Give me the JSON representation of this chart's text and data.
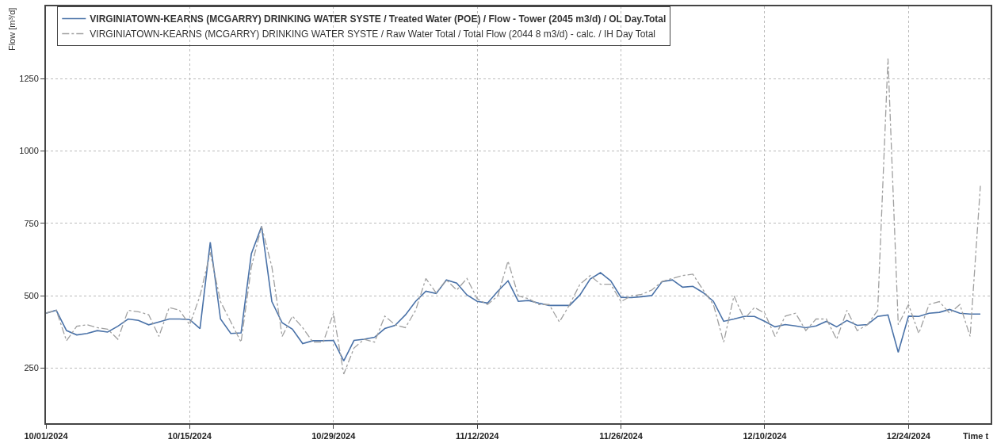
{
  "chart_data": {
    "type": "line",
    "ylabel": "Flow [m³/d]",
    "xlabel": "Time t",
    "x": [
      "2024-10-01",
      "2024-10-02",
      "2024-10-03",
      "2024-10-04",
      "2024-10-05",
      "2024-10-06",
      "2024-10-07",
      "2024-10-08",
      "2024-10-09",
      "2024-10-10",
      "2024-10-11",
      "2024-10-12",
      "2024-10-13",
      "2024-10-14",
      "2024-10-15",
      "2024-10-16",
      "2024-10-17",
      "2024-10-18",
      "2024-10-19",
      "2024-10-20",
      "2024-10-21",
      "2024-10-22",
      "2024-10-23",
      "2024-10-24",
      "2024-10-25",
      "2024-10-26",
      "2024-10-27",
      "2024-10-28",
      "2024-10-29",
      "2024-10-30",
      "2024-10-31",
      "2024-11-01",
      "2024-11-02",
      "2024-11-03",
      "2024-11-04",
      "2024-11-05",
      "2024-11-06",
      "2024-11-07",
      "2024-11-08",
      "2024-11-09",
      "2024-11-10",
      "2024-11-11",
      "2024-11-12",
      "2024-11-13",
      "2024-11-14",
      "2024-11-15",
      "2024-11-16",
      "2024-11-17",
      "2024-11-18",
      "2024-11-19",
      "2024-11-20",
      "2024-11-21",
      "2024-11-22",
      "2024-11-23",
      "2024-11-24",
      "2024-11-25",
      "2024-11-26",
      "2024-11-27",
      "2024-11-28",
      "2024-11-29",
      "2024-11-30",
      "2024-12-01",
      "2024-12-02",
      "2024-12-03",
      "2024-12-04",
      "2024-12-05",
      "2024-12-06",
      "2024-12-07",
      "2024-12-08",
      "2024-12-09",
      "2024-12-10",
      "2024-12-11",
      "2024-12-12",
      "2024-12-13",
      "2024-12-14",
      "2024-12-15",
      "2024-12-16",
      "2024-12-17",
      "2024-12-18",
      "2024-12-19",
      "2024-12-20",
      "2024-12-21",
      "2024-12-22",
      "2024-12-23",
      "2024-12-24",
      "2024-12-25",
      "2024-12-26",
      "2024-12-27",
      "2024-12-28",
      "2024-12-29",
      "2024-12-30",
      "2024-12-31"
    ],
    "series": [
      {
        "name": "VIRGINIATOWN-KEARNS (MCGARRY) DRINKING WATER SYSTE / Treated Water (POE) / Flow - Tower (2045 m3/d) / OL Day.Total",
        "color": "#4a72a8",
        "line_style": "solid",
        "values": [
          440,
          450,
          380,
          365,
          370,
          380,
          375,
          395,
          420,
          415,
          400,
          410,
          420,
          420,
          418,
          387,
          685,
          420,
          370,
          372,
          645,
          740,
          480,
          407,
          385,
          335,
          345,
          345,
          346,
          275,
          346,
          350,
          357,
          387,
          398,
          434,
          481,
          516,
          508,
          555,
          544,
          503,
          481,
          475,
          516,
          552,
          481,
          484,
          475,
          467,
          467,
          467,
          503,
          558,
          580,
          552,
          495,
          494,
          497,
          501,
          549,
          555,
          530,
          533,
          511,
          481,
          412,
          420,
          429,
          429,
          412,
          393,
          401,
          396,
          390,
          396,
          412,
          393,
          415,
          398,
          401,
          429,
          434,
          305,
          430,
          429,
          440,
          443,
          453,
          440,
          437,
          437
        ]
      },
      {
        "name": "VIRGINIATOWN-KEARNS (MCGARRY) DRINKING WATER SYSTE / Raw Water Total / Total Flow (2044 8 m3/d) - calc. / IH Day Total",
        "color": "#a0a0a0",
        "line_style": "dashed",
        "values": [
          440,
          450,
          345,
          395,
          400,
          390,
          385,
          350,
          450,
          445,
          435,
          360,
          460,
          450,
          400,
          500,
          650,
          480,
          410,
          340,
          600,
          740,
          600,
          360,
          430,
          390,
          340,
          340,
          440,
          230,
          320,
          350,
          340,
          430,
          400,
          390,
          450,
          560,
          510,
          555,
          520,
          560,
          490,
          470,
          500,
          620,
          500,
          490,
          470,
          470,
          410,
          470,
          540,
          570,
          540,
          540,
          480,
          500,
          505,
          520,
          550,
          560,
          570,
          575,
          520,
          470,
          340,
          500,
          420,
          460,
          440,
          360,
          430,
          440,
          380,
          420,
          420,
          350,
          450,
          380,
          400,
          450,
          1320,
          400,
          470,
          370,
          470,
          480,
          440,
          470,
          360,
          880
        ]
      }
    ],
    "xlim": [
      "2024-10-01",
      "2025-01-01"
    ],
    "xticks": [
      {
        "value": "2024-10-01",
        "label": "10/01/2024"
      },
      {
        "value": "2024-10-15",
        "label": "10/15/2024"
      },
      {
        "value": "2024-10-29",
        "label": "10/29/2024"
      },
      {
        "value": "2024-11-12",
        "label": "11/12/2024"
      },
      {
        "value": "2024-11-26",
        "label": "11/26/2024"
      },
      {
        "value": "2024-12-10",
        "label": "12/10/2024"
      },
      {
        "value": "2024-12-24",
        "label": "12/24/2024"
      }
    ],
    "ylim": [
      60,
      1500
    ],
    "yticks": [
      250,
      500,
      750,
      1000,
      1250
    ],
    "grid": true,
    "legend": "top left",
    "marker": "none"
  }
}
